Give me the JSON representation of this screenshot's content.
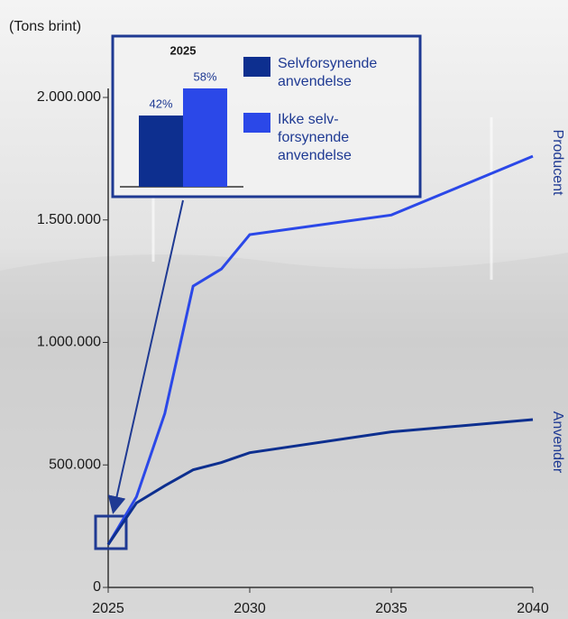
{
  "chart_data": [
    {
      "type": "line",
      "y_label": "(Tons brint)",
      "x": [
        2025,
        2026,
        2027,
        2028,
        2029,
        2030,
        2035,
        2040
      ],
      "series": [
        {
          "name": "Producent",
          "color": "#2b48e8",
          "values": [
            175000,
            370000,
            710000,
            1230000,
            1300000,
            1440000,
            1520000,
            1760000
          ]
        },
        {
          "name": "Anvender",
          "color": "#0d2f8f",
          "values": [
            175000,
            345000,
            415000,
            480000,
            510000,
            550000,
            635000,
            685000
          ]
        }
      ],
      "xlim": [
        2025,
        2040
      ],
      "xticks": [
        2025,
        2030,
        2035,
        2040
      ],
      "ylim": [
        0,
        2000000
      ],
      "yticks": [
        0,
        {
          "value": 500000,
          "label": "500.000"
        },
        {
          "value": 1000000,
          "label": "1.000.000"
        },
        {
          "value": 1500000,
          "label": "1.500.000"
        },
        {
          "value": 2000000,
          "label": "2.000.000"
        }
      ]
    },
    {
      "type": "bar",
      "title": "2025",
      "series": [
        {
          "name": "Selvforsynende anvendelse",
          "color": "#0d2f8f",
          "values": [
            42
          ],
          "value_labels": [
            "42%"
          ]
        },
        {
          "name": "Ikke selv-forsynende anvendelse",
          "color": "#2b48e8",
          "values": [
            58
          ],
          "value_labels": [
            "58%"
          ]
        }
      ]
    }
  ]
}
